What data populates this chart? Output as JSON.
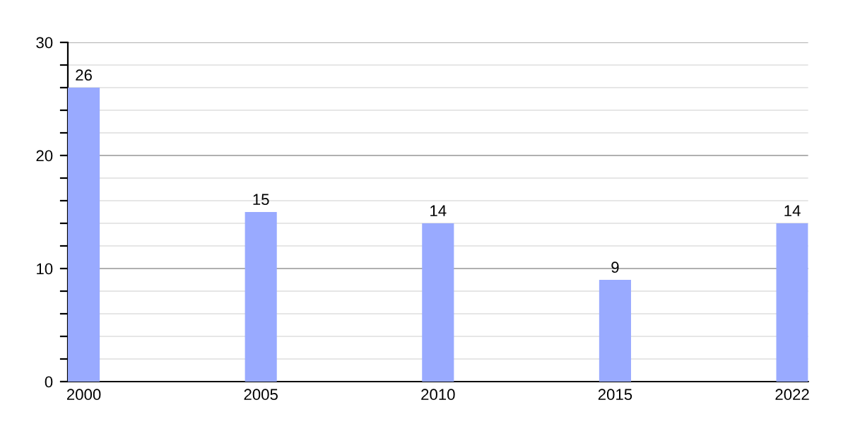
{
  "chart_data": {
    "type": "bar",
    "categories": [
      "2000",
      "2005",
      "2010",
      "2015",
      "2022"
    ],
    "values": [
      26,
      15,
      14,
      9,
      14
    ],
    "color": "#99aaff",
    "ylim": [
      0,
      30
    ],
    "yticks": [
      0,
      {
        "value": 2,
        "label": null
      },
      {
        "value": 4,
        "label": null
      },
      {
        "value": 6,
        "label": null
      },
      {
        "value": 8,
        "label": null
      },
      10,
      {
        "value": 12,
        "label": null
      },
      {
        "value": 14,
        "label": null
      },
      {
        "value": 16,
        "label": null
      },
      {
        "value": 18,
        "label": null
      },
      20,
      {
        "value": 22,
        "label": null
      },
      {
        "value": 24,
        "label": null
      },
      {
        "value": 26,
        "label": null
      },
      {
        "value": 28,
        "label": null
      },
      30
    ],
    "grid": "y",
    "data_labels": true
  }
}
